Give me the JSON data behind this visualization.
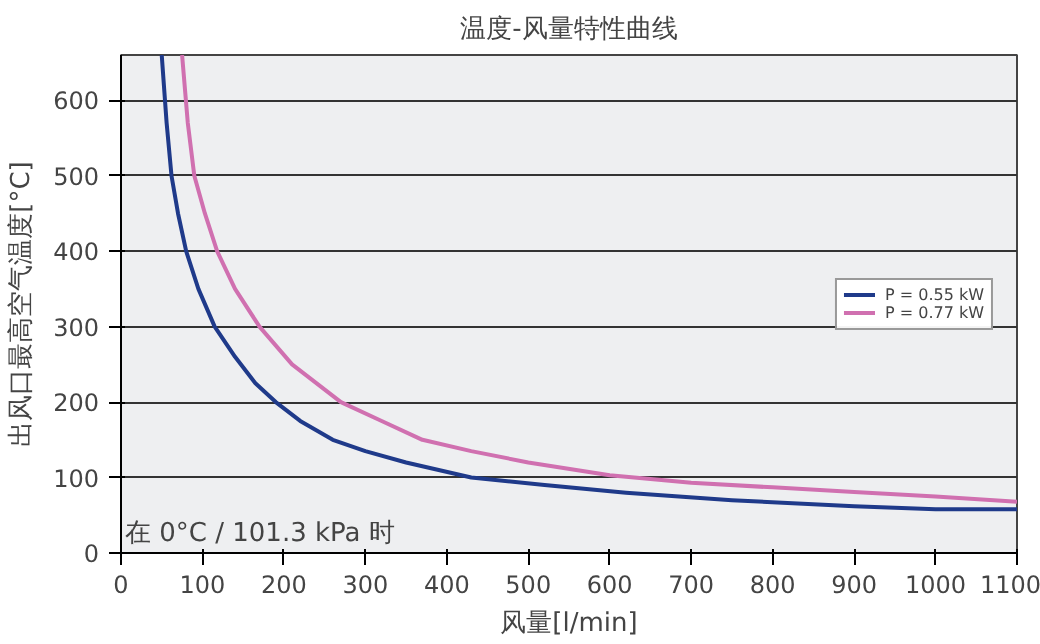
{
  "chart_data": {
    "type": "line",
    "title": "温度-风量特性曲线",
    "xlabel": "风量[l/min]",
    "ylabel": "出风口最高空气温度[°C]",
    "annotations": [
      "在 0°C / 101.3 kPa 时"
    ],
    "xlim": [
      0,
      1100
    ],
    "xticks": [
      0,
      100,
      200,
      300,
      400,
      500,
      600,
      700,
      800,
      900,
      1000,
      1100
    ],
    "ylim": [
      0,
      660
    ],
    "yticks": [
      0,
      100,
      200,
      300,
      400,
      500,
      600
    ],
    "grid": "y",
    "legend": "right",
    "line_style": "solid",
    "marker": "none",
    "series": [
      {
        "name": "P = 0.55 kW",
        "color": "#1f3a8a",
        "x": [
          50,
          56,
          62,
          70,
          80,
          95,
          115,
          140,
          165,
          190,
          220,
          260,
          300,
          350,
          430,
          520,
          620,
          750,
          900,
          1000,
          1100
        ],
        "values": [
          660,
          570,
          500,
          450,
          400,
          350,
          300,
          260,
          225,
          200,
          175,
          150,
          135,
          120,
          100,
          90,
          80,
          70,
          62,
          58,
          58
        ]
      },
      {
        "name": "P = 0.77 kW",
        "color": "#d070b0",
        "x": [
          75,
          82,
          90,
          103,
          118,
          140,
          170,
          210,
          270,
          320,
          370,
          430,
          500,
          600,
          700,
          800,
          900,
          1000,
          1100
        ],
        "values": [
          660,
          570,
          500,
          450,
          400,
          350,
          300,
          250,
          200,
          175,
          150,
          135,
          120,
          103,
          93,
          87,
          81,
          75,
          68
        ]
      }
    ]
  }
}
